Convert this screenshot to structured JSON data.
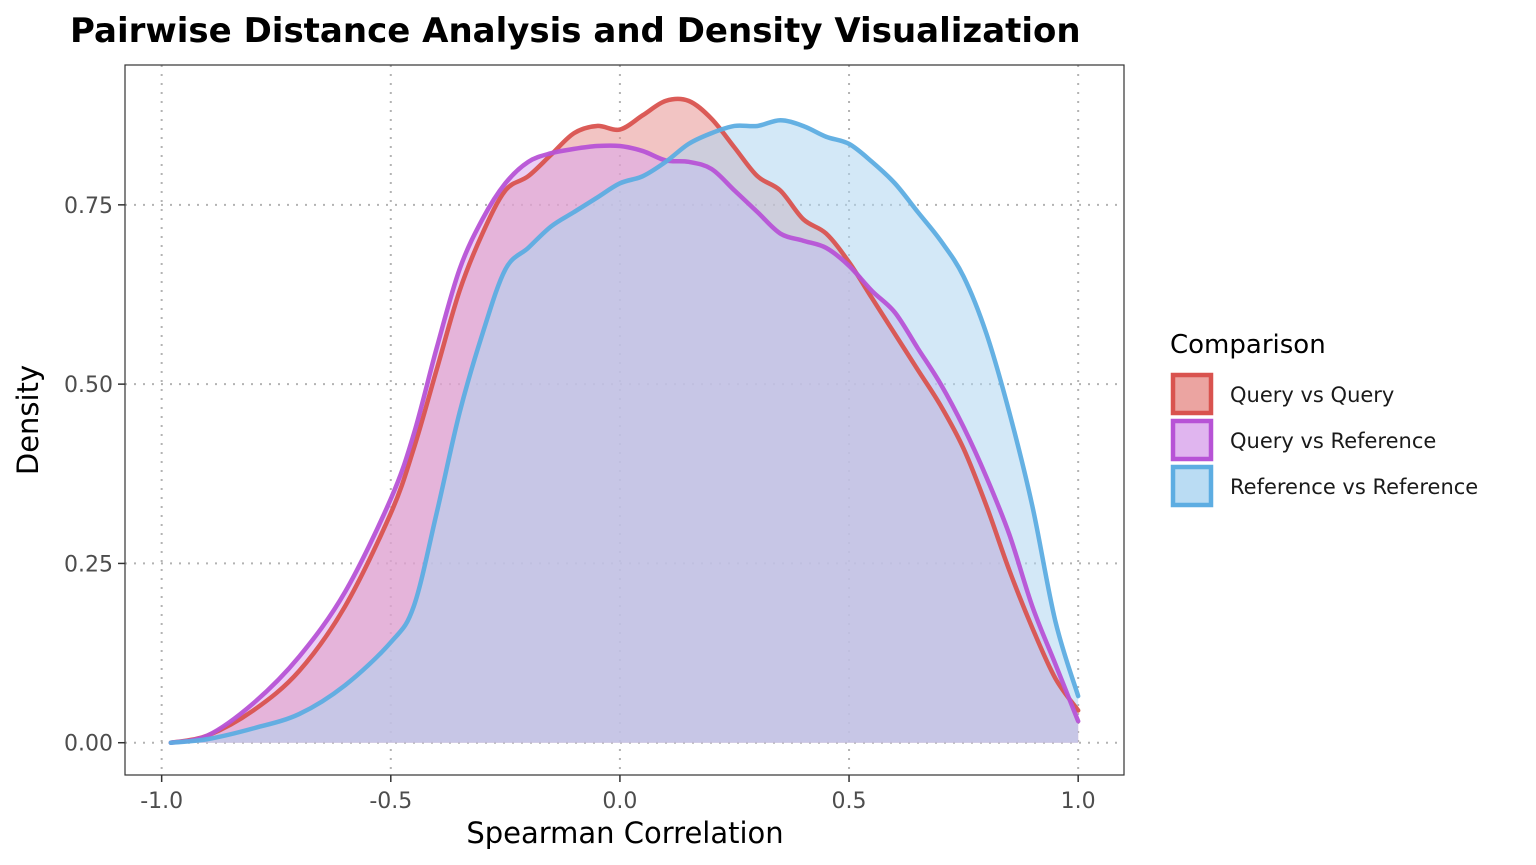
{
  "chart_data": {
    "type": "area",
    "title": "Pairwise Distance Analysis and Density Visualization",
    "xlabel": "Spearman Correlation",
    "ylabel": "Density",
    "xlim": [
      -1.08,
      1.1
    ],
    "ylim": [
      -0.045,
      0.945
    ],
    "x_ticks": [
      -1.0,
      -0.5,
      0.0,
      0.5,
      1.0
    ],
    "x_tick_labels": [
      "-1.0",
      "-0.5",
      "0.0",
      "0.5",
      "1.0"
    ],
    "y_ticks": [
      0.0,
      0.25,
      0.5,
      0.75
    ],
    "y_tick_labels": [
      "0.00",
      "0.25",
      "0.50",
      "0.75"
    ],
    "grid": "major, dotted",
    "legend": {
      "title": "Comparison",
      "placement": "right"
    },
    "series": [
      {
        "name": "Query vs Query",
        "line_color": "#d9534f",
        "fill_color": "#e89491",
        "x": [
          -0.98,
          -0.9,
          -0.8,
          -0.7,
          -0.6,
          -0.5,
          -0.45,
          -0.4,
          -0.35,
          -0.3,
          -0.25,
          -0.2,
          -0.15,
          -0.1,
          -0.05,
          0.0,
          0.05,
          0.1,
          0.15,
          0.2,
          0.25,
          0.3,
          0.35,
          0.4,
          0.45,
          0.5,
          0.55,
          0.6,
          0.65,
          0.7,
          0.75,
          0.8,
          0.85,
          0.9,
          0.95,
          1.0
        ],
        "y": [
          0.0,
          0.01,
          0.045,
          0.1,
          0.19,
          0.32,
          0.41,
          0.52,
          0.63,
          0.71,
          0.77,
          0.79,
          0.82,
          0.85,
          0.86,
          0.855,
          0.875,
          0.895,
          0.895,
          0.87,
          0.83,
          0.79,
          0.77,
          0.73,
          0.71,
          0.67,
          0.62,
          0.57,
          0.52,
          0.47,
          0.41,
          0.33,
          0.24,
          0.16,
          0.09,
          0.045
        ]
      },
      {
        "name": "Query vs Reference",
        "line_color": "#b753d6",
        "fill_color": "#dba8ec",
        "x": [
          -0.98,
          -0.9,
          -0.8,
          -0.7,
          -0.6,
          -0.5,
          -0.45,
          -0.4,
          -0.35,
          -0.3,
          -0.25,
          -0.2,
          -0.15,
          -0.1,
          -0.05,
          0.0,
          0.05,
          0.1,
          0.15,
          0.2,
          0.25,
          0.3,
          0.35,
          0.4,
          0.45,
          0.5,
          0.55,
          0.6,
          0.65,
          0.7,
          0.75,
          0.8,
          0.85,
          0.9,
          0.95,
          1.0
        ],
        "y": [
          0.0,
          0.01,
          0.055,
          0.12,
          0.21,
          0.34,
          0.43,
          0.55,
          0.66,
          0.73,
          0.78,
          0.81,
          0.822,
          0.828,
          0.832,
          0.832,
          0.825,
          0.812,
          0.81,
          0.8,
          0.77,
          0.74,
          0.71,
          0.7,
          0.69,
          0.665,
          0.63,
          0.6,
          0.55,
          0.5,
          0.44,
          0.37,
          0.29,
          0.19,
          0.11,
          0.03
        ]
      },
      {
        "name": "Reference vs Reference",
        "line_color": "#5dade2",
        "fill_color": "#aed6f1",
        "x": [
          -0.98,
          -0.9,
          -0.8,
          -0.7,
          -0.6,
          -0.5,
          -0.45,
          -0.4,
          -0.35,
          -0.3,
          -0.25,
          -0.2,
          -0.15,
          -0.1,
          -0.05,
          0.0,
          0.05,
          0.1,
          0.15,
          0.2,
          0.25,
          0.3,
          0.35,
          0.4,
          0.45,
          0.5,
          0.55,
          0.6,
          0.65,
          0.7,
          0.75,
          0.8,
          0.85,
          0.9,
          0.95,
          1.0
        ],
        "y": [
          0.0,
          0.005,
          0.02,
          0.04,
          0.08,
          0.14,
          0.19,
          0.32,
          0.46,
          0.57,
          0.66,
          0.69,
          0.72,
          0.74,
          0.76,
          0.78,
          0.79,
          0.81,
          0.835,
          0.85,
          0.86,
          0.86,
          0.868,
          0.86,
          0.845,
          0.835,
          0.81,
          0.78,
          0.74,
          0.7,
          0.65,
          0.57,
          0.46,
          0.33,
          0.17,
          0.065
        ]
      }
    ]
  }
}
